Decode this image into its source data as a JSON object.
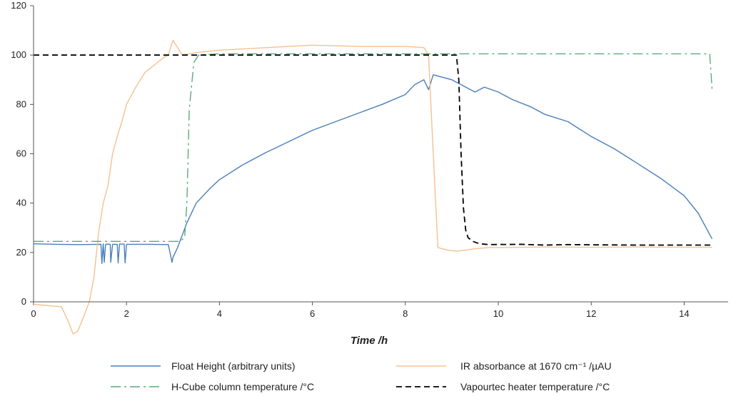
{
  "chart_data": {
    "type": "line",
    "title": "",
    "xlabel": "Time /h",
    "ylabel": "",
    "xlim": [
      0,
      15
    ],
    "ylim": [
      0,
      120
    ],
    "x_ticks": [
      "0",
      "2",
      "4",
      "6",
      "8",
      "10",
      "12",
      "14"
    ],
    "y_ticks": [
      "0",
      "20",
      "40",
      "60",
      "80",
      "100",
      "120"
    ],
    "grid": false,
    "legend_position": "bottom",
    "series": [
      {
        "name": "Float Height (arbitrary units)",
        "color": "#4a7ebb",
        "style": "solid",
        "x": [
          0,
          0.5,
          1.0,
          1.45,
          1.47,
          1.5,
          1.52,
          1.55,
          1.6,
          1.65,
          1.66,
          1.7,
          1.8,
          1.82,
          1.85,
          1.95,
          1.97,
          2.0,
          2.1,
          2.5,
          2.9,
          2.98,
          3.0,
          3.1,
          3.3,
          3.5,
          3.8,
          4.0,
          4.5,
          5.0,
          5.5,
          6.0,
          6.5,
          7.0,
          7.5,
          8.0,
          8.2,
          8.4,
          8.5,
          8.55,
          8.6,
          9.0,
          9.5,
          9.7,
          10.0,
          10.3,
          10.7,
          11.0,
          11.5,
          12.0,
          12.5,
          13.0,
          13.5,
          14.0,
          14.3,
          14.6
        ],
        "y": [
          23.5,
          23.3,
          23.2,
          23.3,
          15.5,
          23.5,
          16,
          23.3,
          23.4,
          23.3,
          16,
          23.3,
          23.3,
          15.8,
          23.4,
          23.4,
          15.8,
          23.3,
          23.3,
          23.3,
          23.2,
          16,
          18,
          22,
          32,
          40,
          46,
          49.5,
          55.5,
          60.5,
          65,
          69.5,
          73,
          76.5,
          80,
          84,
          88,
          90,
          86,
          89,
          92,
          90,
          85,
          87,
          85,
          82,
          79,
          76,
          73,
          67,
          62,
          56,
          50,
          43,
          36,
          25.5
        ]
      },
      {
        "name": "IR absorbance at 1670 cm⁻¹ /µAU",
        "color": "#f6c08f",
        "style": "solid",
        "x": [
          0,
          0.3,
          0.6,
          0.75,
          0.85,
          0.95,
          1.1,
          1.2,
          1.3,
          1.4,
          1.5,
          1.6,
          1.7,
          1.8,
          1.9,
          2.0,
          2.2,
          2.4,
          2.6,
          2.8,
          2.9,
          3.0,
          3.2,
          3.5,
          4.0,
          5.0,
          6.0,
          7.0,
          8.0,
          8.4,
          8.5,
          8.6,
          8.7,
          8.9,
          9.1,
          9.3,
          9.5,
          9.8,
          10.0,
          11.0,
          12.0,
          13.0,
          14.0,
          14.6
        ],
        "y": [
          -1,
          -1.5,
          -2,
          -8,
          -13,
          -12,
          -5,
          0,
          10,
          28,
          40,
          47,
          60,
          67,
          73,
          80,
          87,
          93,
          96,
          99,
          100,
          106,
          100,
          101,
          102,
          103,
          104,
          103.5,
          103.5,
          103,
          100,
          60,
          22,
          21,
          20.5,
          21,
          21.5,
          22,
          22,
          22.2,
          22.1,
          22.2,
          22.1,
          22.1
        ]
      },
      {
        "name": "H-Cube column temperature /°C",
        "color": "#5aaa78",
        "style": "dashdot",
        "x": [
          0,
          1.0,
          2.0,
          3.0,
          3.15,
          3.25,
          3.3,
          3.35,
          3.45,
          3.55,
          4.0,
          6.0,
          8.0,
          10.0,
          12.0,
          14.0,
          14.55,
          14.6
        ],
        "y": [
          24.5,
          24.5,
          24.5,
          24.5,
          24.5,
          26,
          40,
          78,
          97,
          100,
          100.5,
          100.5,
          100.5,
          100.5,
          100.5,
          100.5,
          100.5,
          86
        ]
      },
      {
        "name": "Vapourtec heater temperature /°C",
        "color": "#000000",
        "style": "dashed",
        "x": [
          0,
          2.0,
          4.0,
          6.0,
          8.0,
          9.1,
          9.15,
          9.2,
          9.25,
          9.3,
          9.35,
          9.45,
          9.6,
          9.8,
          10.5,
          11.0,
          11.5,
          12.0,
          13.0,
          14.0,
          14.6
        ],
        "y": [
          100,
          100,
          100,
          100,
          100,
          100,
          90,
          60,
          38,
          29,
          26,
          24.5,
          23.5,
          23.2,
          23.3,
          23,
          23.2,
          23.1,
          23,
          23,
          23
        ]
      }
    ]
  }
}
